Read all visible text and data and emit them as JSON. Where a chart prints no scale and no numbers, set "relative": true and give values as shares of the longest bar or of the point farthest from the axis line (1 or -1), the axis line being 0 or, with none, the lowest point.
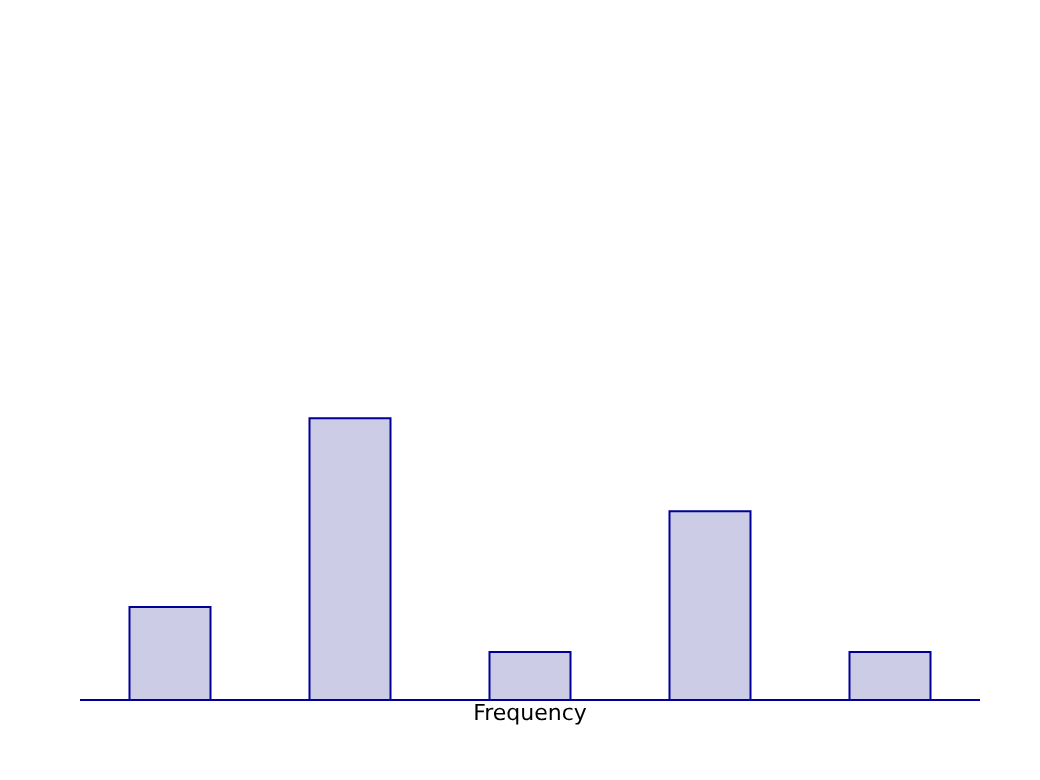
{
  "chart_data": {
    "type": "bar",
    "relative": true,
    "xlabel": "Frequency",
    "categories": [
      null,
      null,
      null,
      null,
      null
    ],
    "color": "#ccccE6",
    "values": [
      0.33,
      1,
      0.17,
      0.67,
      0.17
    ],
    "grid": false
  }
}
